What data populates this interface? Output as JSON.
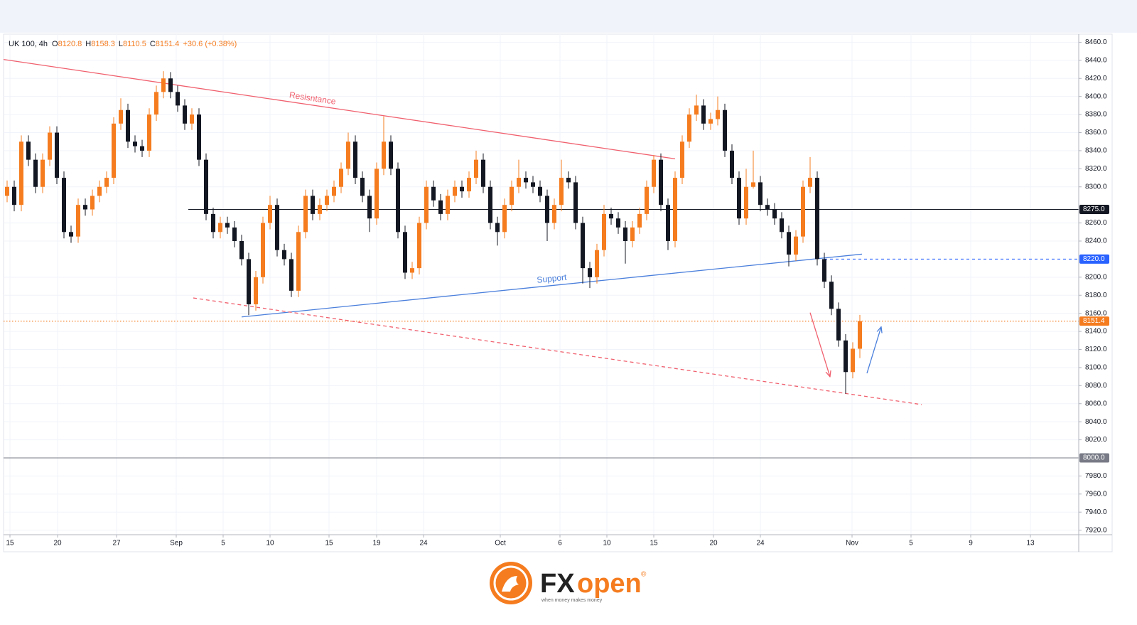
{
  "chart_data": {
    "type": "candlestick",
    "symbol": "UK 100, 4h",
    "ohlc_legend": [
      {
        "key": "O",
        "value": "8120.8"
      },
      {
        "key": "H",
        "value": "8158.3"
      },
      {
        "key": "L",
        "value": "8110.5"
      },
      {
        "key": "C",
        "value": "8151.4"
      }
    ],
    "change": "+30.6 (+0.38%)",
    "up_color": "#f57c1f",
    "down_color": "#131722",
    "open": [
      8290,
      8300,
      8280,
      8350,
      8330,
      8300,
      8330,
      8360,
      8310,
      8250,
      8245,
      8280,
      8275,
      8290,
      8300,
      8310,
      8370,
      8385,
      8350,
      8345,
      8340,
      8380,
      8405,
      8420,
      8405,
      8390,
      8370,
      8380,
      8330,
      8270,
      8250,
      8260,
      8255,
      8240,
      8220,
      8170,
      8200,
      8260,
      8280,
      8230,
      8220,
      8185,
      8250,
      8290,
      8270,
      8280,
      8290,
      8300,
      8320,
      8350,
      8310,
      8290,
      8265,
      8320,
      8350,
      8320,
      8250,
      8205,
      8210,
      8260,
      8300,
      8285,
      8270,
      8290,
      8300,
      8295,
      8310,
      8330,
      8300,
      8260,
      8250,
      8280,
      8300,
      8310,
      8305,
      8300,
      8290,
      8260,
      8280,
      8310,
      8305,
      8260,
      8210,
      8200,
      8230,
      8270,
      8265,
      8255,
      8240,
      8255,
      8270,
      8300,
      8330,
      8280,
      8240,
      8310,
      8350,
      8380,
      8390,
      8370,
      8375,
      8385,
      8340,
      8310,
      8265,
      8300,
      8305,
      8280,
      8275,
      8265,
      8250,
      8225,
      8245,
      8300,
      8310,
      8220,
      8195,
      8165,
      8130,
      8095,
      8120.8
    ],
    "high": [
      8307,
      8307,
      8357,
      8357,
      8337,
      8337,
      8367,
      8367,
      8317,
      8257,
      8287,
      8287,
      8297,
      8307,
      8317,
      8377,
      8398,
      8392,
      8357,
      8352,
      8387,
      8412,
      8428,
      8427,
      8412,
      8397,
      8387,
      8387,
      8337,
      8277,
      8267,
      8267,
      8262,
      8247,
      8227,
      8207,
      8267,
      8290,
      8287,
      8237,
      8227,
      8257,
      8297,
      8297,
      8287,
      8297,
      8307,
      8327,
      8360,
      8357,
      8317,
      8297,
      8327,
      8378,
      8357,
      8327,
      8257,
      8217,
      8267,
      8307,
      8307,
      8292,
      8297,
      8307,
      8307,
      8317,
      8340,
      8337,
      8307,
      8267,
      8287,
      8307,
      8330,
      8317,
      8312,
      8307,
      8297,
      8287,
      8330,
      8317,
      8312,
      8267,
      8217,
      8237,
      8280,
      8277,
      8272,
      8262,
      8262,
      8277,
      8307,
      8335,
      8337,
      8287,
      8317,
      8357,
      8387,
      8402,
      8397,
      8382,
      8400,
      8392,
      8347,
      8317,
      8320,
      8340,
      8312,
      8287,
      8282,
      8272,
      8257,
      8252,
      8307,
      8333,
      8317,
      8227,
      8202,
      8172,
      8137,
      8128,
      8158.3
    ],
    "low": [
      8283,
      8273,
      8273,
      8323,
      8293,
      8293,
      8323,
      8303,
      8243,
      8238,
      8238,
      8268,
      8268,
      8283,
      8293,
      8303,
      8363,
      8343,
      8338,
      8333,
      8333,
      8373,
      8398,
      8398,
      8383,
      8363,
      8363,
      8323,
      8263,
      8243,
      8243,
      8248,
      8233,
      8213,
      8158,
      8163,
      8193,
      8253,
      8223,
      8213,
      8178,
      8178,
      8243,
      8263,
      8263,
      8273,
      8283,
      8293,
      8313,
      8303,
      8283,
      8250,
      8258,
      8313,
      8313,
      8243,
      8198,
      8198,
      8203,
      8253,
      8278,
      8263,
      8263,
      8283,
      8288,
      8288,
      8303,
      8293,
      8253,
      8235,
      8243,
      8273,
      8293,
      8298,
      8293,
      8283,
      8240,
      8253,
      8273,
      8298,
      8253,
      8193,
      8188,
      8193,
      8223,
      8258,
      8248,
      8215,
      8233,
      8248,
      8263,
      8293,
      8273,
      8230,
      8233,
      8303,
      8343,
      8373,
      8363,
      8363,
      8368,
      8333,
      8303,
      8258,
      8258,
      8298,
      8273,
      8268,
      8258,
      8243,
      8212,
      8218,
      8238,
      8293,
      8213,
      8188,
      8158,
      8123,
      8071,
      8088,
      8110.5
    ],
    "close": [
      8300,
      8280,
      8350,
      8330,
      8300,
      8330,
      8360,
      8310,
      8250,
      8245,
      8280,
      8275,
      8290,
      8300,
      8310,
      8370,
      8385,
      8350,
      8345,
      8340,
      8380,
      8405,
      8420,
      8405,
      8390,
      8370,
      8380,
      8330,
      8270,
      8250,
      8260,
      8255,
      8240,
      8220,
      8170,
      8200,
      8260,
      8280,
      8230,
      8220,
      8185,
      8250,
      8290,
      8270,
      8280,
      8290,
      8300,
      8320,
      8350,
      8310,
      8290,
      8265,
      8320,
      8350,
      8320,
      8250,
      8205,
      8210,
      8260,
      8300,
      8285,
      8270,
      8290,
      8300,
      8295,
      8310,
      8330,
      8300,
      8260,
      8250,
      8280,
      8300,
      8310,
      8305,
      8300,
      8290,
      8260,
      8280,
      8310,
      8305,
      8260,
      8210,
      8200,
      8230,
      8270,
      8265,
      8255,
      8240,
      8255,
      8270,
      8300,
      8330,
      8280,
      8240,
      8310,
      8350,
      8380,
      8390,
      8370,
      8375,
      8385,
      8340,
      8310,
      8265,
      8300,
      8305,
      8280,
      8275,
      8265,
      8250,
      8225,
      8245,
      8300,
      8310,
      8220,
      8195,
      8165,
      8130,
      8095,
      8120.8,
      8151.4
    ],
    "xlim": [
      -0.5,
      150.8
    ],
    "xticks": [
      {
        "value": 0.4,
        "label": "15"
      },
      {
        "value": 7.1,
        "label": "20"
      },
      {
        "value": 15.4,
        "label": "27"
      },
      {
        "value": 23.8,
        "label": "Sep"
      },
      {
        "value": 30.4,
        "label": "5"
      },
      {
        "value": 37,
        "label": "10"
      },
      {
        "value": 45.3,
        "label": "15"
      },
      {
        "value": 52,
        "label": "19"
      },
      {
        "value": 58.6,
        "label": "24"
      },
      {
        "value": 69.4,
        "label": "Oct"
      },
      {
        "value": 77.8,
        "label": "6"
      },
      {
        "value": 84.4,
        "label": "10"
      },
      {
        "value": 91,
        "label": "15"
      },
      {
        "value": 99.4,
        "label": "20"
      },
      {
        "value": 106,
        "label": "24"
      },
      {
        "value": 118.9,
        "label": "Nov"
      },
      {
        "value": 127.2,
        "label": "5"
      },
      {
        "value": 135.6,
        "label": "9"
      },
      {
        "value": 144,
        "label": "13"
      }
    ],
    "ylim": [
      7915,
      8469
    ],
    "yticks": [
      {
        "value": 8460,
        "label": "8460.0"
      },
      {
        "value": 8440,
        "label": "8440.0"
      },
      {
        "value": 8420,
        "label": "8420.0"
      },
      {
        "value": 8400,
        "label": "8400.0"
      },
      {
        "value": 8380,
        "label": "8380.0"
      },
      {
        "value": 8360,
        "label": "8360.0"
      },
      {
        "value": 8340,
        "label": "8340.0"
      },
      {
        "value": 8320,
        "label": "8320.0"
      },
      {
        "value": 8300,
        "label": "8300.0"
      },
      {
        "value": 8260,
        "label": "8260.0"
      },
      {
        "value": 8240,
        "label": "8240.0"
      },
      {
        "value": 8200,
        "label": "8200.0"
      },
      {
        "value": 8180,
        "label": "8180.0"
      },
      {
        "value": 8160,
        "label": "8160.0"
      },
      {
        "value": 8140,
        "label": "8140.0"
      },
      {
        "value": 8120,
        "label": "8120.0"
      },
      {
        "value": 8100,
        "label": "8100.0"
      },
      {
        "value": 8080,
        "label": "8080.0"
      },
      {
        "value": 8060,
        "label": "8060.0"
      },
      {
        "value": 8040,
        "label": "8040.0"
      },
      {
        "value": 8020,
        "label": "8020.0"
      },
      {
        "value": 7980,
        "label": "7980.0"
      },
      {
        "value": 7960,
        "label": "7960.0"
      },
      {
        "value": 7940,
        "label": "7940.0"
      },
      {
        "value": 7920,
        "label": "7920.0"
      }
    ],
    "grid": true,
    "lines": [
      {
        "name": "Resisntance",
        "color": "#f0606e",
        "dash": false,
        "x": [
          -0.5,
          94
        ],
        "y": [
          8441,
          8331
        ]
      },
      {
        "name": "Support",
        "color": "#4a7fdc",
        "dash": false,
        "x": [
          33,
          120.3
        ],
        "y": [
          8156,
          8225.5
        ]
      },
      {
        "color": "#f0606e",
        "dash": true,
        "x": [
          26.2,
          128.7
        ],
        "y": [
          8177,
          8059
        ]
      }
    ],
    "levels": [
      {
        "value": 8275,
        "label": "8275.0",
        "color": "#131722",
        "from": 25.5,
        "style": "solid"
      },
      {
        "value": 8220,
        "label": "8220.0",
        "color": "#2962ff",
        "from": 115,
        "style": "dashed"
      },
      {
        "value": 8151.4,
        "label": "8151.4",
        "color": "#f57c1f",
        "from": -0.5,
        "style": "dotted"
      },
      {
        "value": 8000,
        "label": "8000.0",
        "color": "#787b86",
        "from": -0.5,
        "style": "solid"
      }
    ],
    "arrows": [
      {
        "color": "#f0606e",
        "x": [
          113,
          115.8
        ],
        "y": [
          8160.8,
          8089.8
        ]
      },
      {
        "color": "#4a7fdc",
        "x": [
          121,
          123
        ],
        "y": [
          8093.7,
          8145
        ]
      }
    ]
  },
  "footer": {
    "brand_fx": "FX",
    "brand_open": "open",
    "registered": "®",
    "tagline": "when money makes money"
  }
}
